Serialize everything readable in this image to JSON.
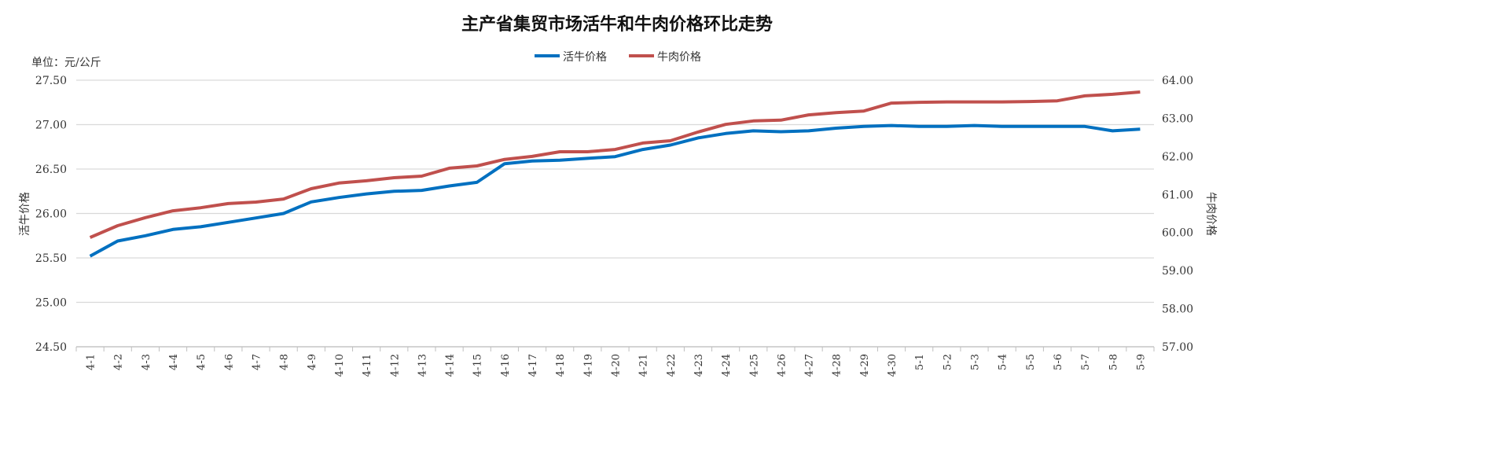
{
  "chart_data": {
    "type": "line",
    "title": "主产省集贸市场活牛和牛肉价格环比走势",
    "unit_label": "单位：元/公斤",
    "ylabel": "活牛价格",
    "y2label": "牛肉价格",
    "ylim": [
      24.5,
      27.5
    ],
    "y2lim": [
      57.0,
      64.0
    ],
    "yticks": [
      "24.50",
      "25.00",
      "25.50",
      "26.00",
      "26.50",
      "27.00",
      "27.50"
    ],
    "y2ticks": [
      "57.00",
      "58.00",
      "59.00",
      "60.00",
      "61.00",
      "62.00",
      "63.00",
      "64.00"
    ],
    "grid": true,
    "legend_position": "top-center",
    "categories": [
      "4-1",
      "4-2",
      "4-3",
      "4-4",
      "4-5",
      "4-6",
      "4-7",
      "4-8",
      "4-9",
      "4-10",
      "4-11",
      "4-12",
      "4-13",
      "4-14",
      "4-15",
      "4-16",
      "4-17",
      "4-18",
      "4-19",
      "4-20",
      "4-21",
      "4-22",
      "4-23",
      "4-24",
      "4-25",
      "4-26",
      "4-27",
      "4-28",
      "4-29",
      "4-30",
      "5-1",
      "5-2",
      "5-3",
      "5-4",
      "5-5",
      "5-6",
      "5-7",
      "5-8",
      "5-9"
    ],
    "series": [
      {
        "name": "活牛价格",
        "axis": "left",
        "color": "#0070C0",
        "values": [
          25.52,
          25.69,
          25.75,
          25.82,
          25.85,
          25.9,
          25.95,
          26.0,
          26.13,
          26.18,
          26.22,
          26.25,
          26.26,
          26.31,
          26.35,
          26.56,
          26.59,
          26.6,
          26.62,
          26.64,
          26.72,
          26.77,
          26.85,
          26.9,
          26.93,
          26.92,
          26.93,
          26.96,
          26.98,
          26.99,
          26.98,
          26.98,
          26.99,
          26.98,
          26.98,
          26.98,
          26.98,
          26.93,
          26.95
        ]
      },
      {
        "name": "牛肉价格",
        "axis": "right",
        "color": "#C0504D",
        "values": [
          59.87,
          60.18,
          60.39,
          60.57,
          60.65,
          60.76,
          60.8,
          60.88,
          61.15,
          61.3,
          61.36,
          61.44,
          61.48,
          61.69,
          61.75,
          61.92,
          62.0,
          62.12,
          62.12,
          62.18,
          62.35,
          62.41,
          62.64,
          62.84,
          62.93,
          62.95,
          63.09,
          63.15,
          63.19,
          63.4,
          63.42,
          63.43,
          63.43,
          63.43,
          63.44,
          63.46,
          63.59,
          63.63,
          63.69
        ]
      }
    ]
  }
}
